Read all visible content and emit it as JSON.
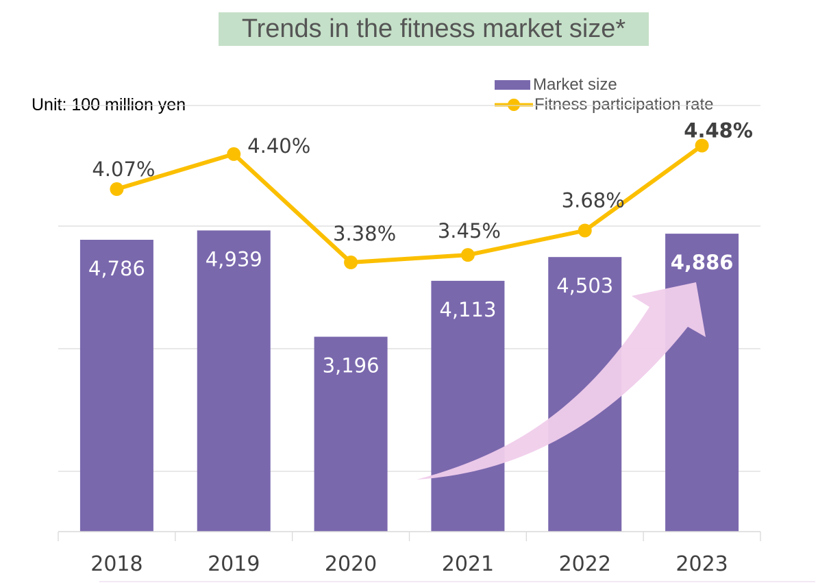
{
  "chart_data": {
    "type": "bar",
    "title": "Trends in the fitness market size*",
    "unit_label": "Unit: 100 million yen",
    "categories": [
      "2018",
      "2019",
      "2020",
      "2021",
      "2022",
      "2023"
    ],
    "series": [
      {
        "name": "Market size",
        "type": "bar",
        "values": [
          4786,
          4939,
          3196,
          4113,
          4503,
          4886
        ],
        "labels": [
          "4,786",
          "4,939",
          "3,196",
          "4,113",
          "4,503",
          "4,886"
        ],
        "color": "#7a68ad"
      },
      {
        "name": "Fitness participation rate",
        "type": "line",
        "values": [
          4.07,
          4.4,
          3.38,
          3.45,
          3.68,
          4.48
        ],
        "labels": [
          "4.07%",
          "4.40%",
          "3.38%",
          "3.45%",
          "3.68%",
          "4.48%"
        ],
        "color": "#fbbf00"
      }
    ],
    "legend_position": "top-right",
    "grid": true,
    "annotation": "upward trend arrow",
    "colors": {
      "title_background": "#c5e0c8",
      "bar": "#7a68ad",
      "line": "#fbbf00",
      "arrow": "#f0cdeb",
      "grid": "#d9d9d9"
    }
  }
}
